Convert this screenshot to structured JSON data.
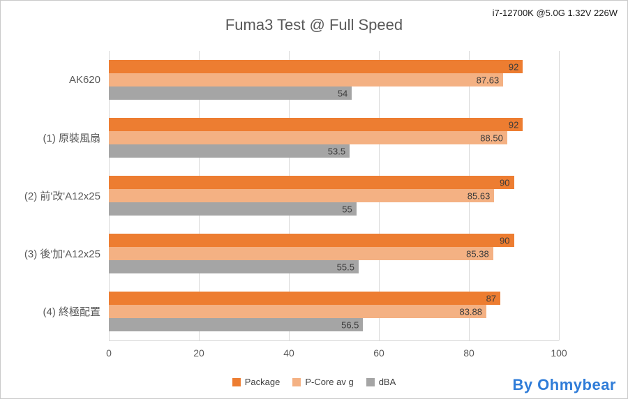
{
  "page": {
    "title": "Fuma3 Test @ Full Speed",
    "annotation": "i7-12700K @5.0G 1.32V 226W",
    "watermark": "By Ohmybear",
    "watermark_color": "#2f7cd8"
  },
  "chart_data": {
    "type": "bar",
    "orientation": "horizontal",
    "title": "Fuma3 Test @ Full Speed",
    "categories": [
      "AK620",
      "(1) 原裝風扇",
      "(2) 前'改'A12x25",
      "(3) 後'加'A12x25",
      "(4) 終極配置"
    ],
    "series": [
      {
        "name": "Package",
        "color": "#ed7d31",
        "values": [
          92,
          92,
          90,
          90,
          87
        ],
        "labels": [
          "92",
          "92",
          "90",
          "90",
          "87"
        ]
      },
      {
        "name": "P-Core av g",
        "color": "#f4b183",
        "values": [
          87.63,
          88.5,
          85.63,
          85.38,
          83.88
        ],
        "labels": [
          "87.63",
          "88.50",
          "85.63",
          "85.38",
          "83.88"
        ]
      },
      {
        "name": "dBA",
        "color": "#a5a5a5",
        "values": [
          54,
          53.5,
          55,
          55.5,
          56.5
        ],
        "labels": [
          "54",
          "53.5",
          "55",
          "55.5",
          "56.5"
        ]
      }
    ],
    "xlim": [
      0,
      100
    ],
    "x_ticks": [
      0,
      20,
      40,
      60,
      80,
      100
    ],
    "x_tick_labels": [
      "0",
      "20",
      "40",
      "60",
      "80",
      "100"
    ],
    "grid": true,
    "legend_position": "bottom"
  }
}
